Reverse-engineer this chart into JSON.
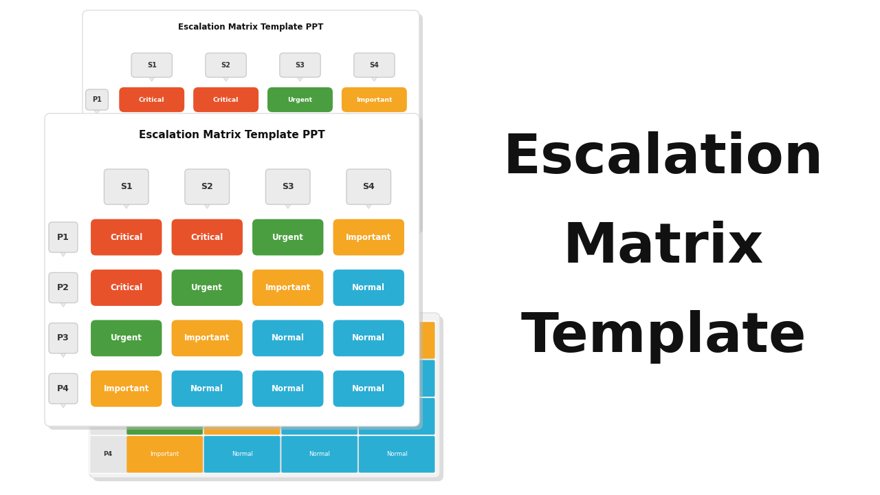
{
  "title": "Escalation Matrix Template PPT",
  "big_title_lines": [
    "Escalation",
    "Matrix",
    "Template"
  ],
  "scenarios": [
    "S1",
    "S2",
    "S3",
    "S4"
  ],
  "priorities": [
    "P1",
    "P2",
    "P3",
    "P4"
  ],
  "matrix": [
    [
      "Critical",
      "Critical",
      "Urgent",
      "Important"
    ],
    [
      "Critical",
      "Urgent",
      "Important",
      "Normal"
    ],
    [
      "Urgent",
      "Important",
      "Normal",
      "Normal"
    ],
    [
      "Important",
      "Normal",
      "Normal",
      "Normal"
    ]
  ],
  "colors": {
    "Critical": "#E8522A",
    "Urgent": "#4A9E3F",
    "Important": "#F5A623",
    "Normal": "#2BAED4"
  },
  "bg_color": "#FFFFFF",
  "slide_bg": "#FFFFFF",
  "cell_text_color": "#FFFFFF",
  "header_text_color": "#333333",
  "big_title_color": "#111111",
  "shadow_color": "#BBBBBB",
  "badge_bg": "#EBEBEB",
  "badge_border": "#CCCCCC",
  "flat_row_bg": "#E0E0E0",
  "flat_cell_bg": "#D0D0D0"
}
